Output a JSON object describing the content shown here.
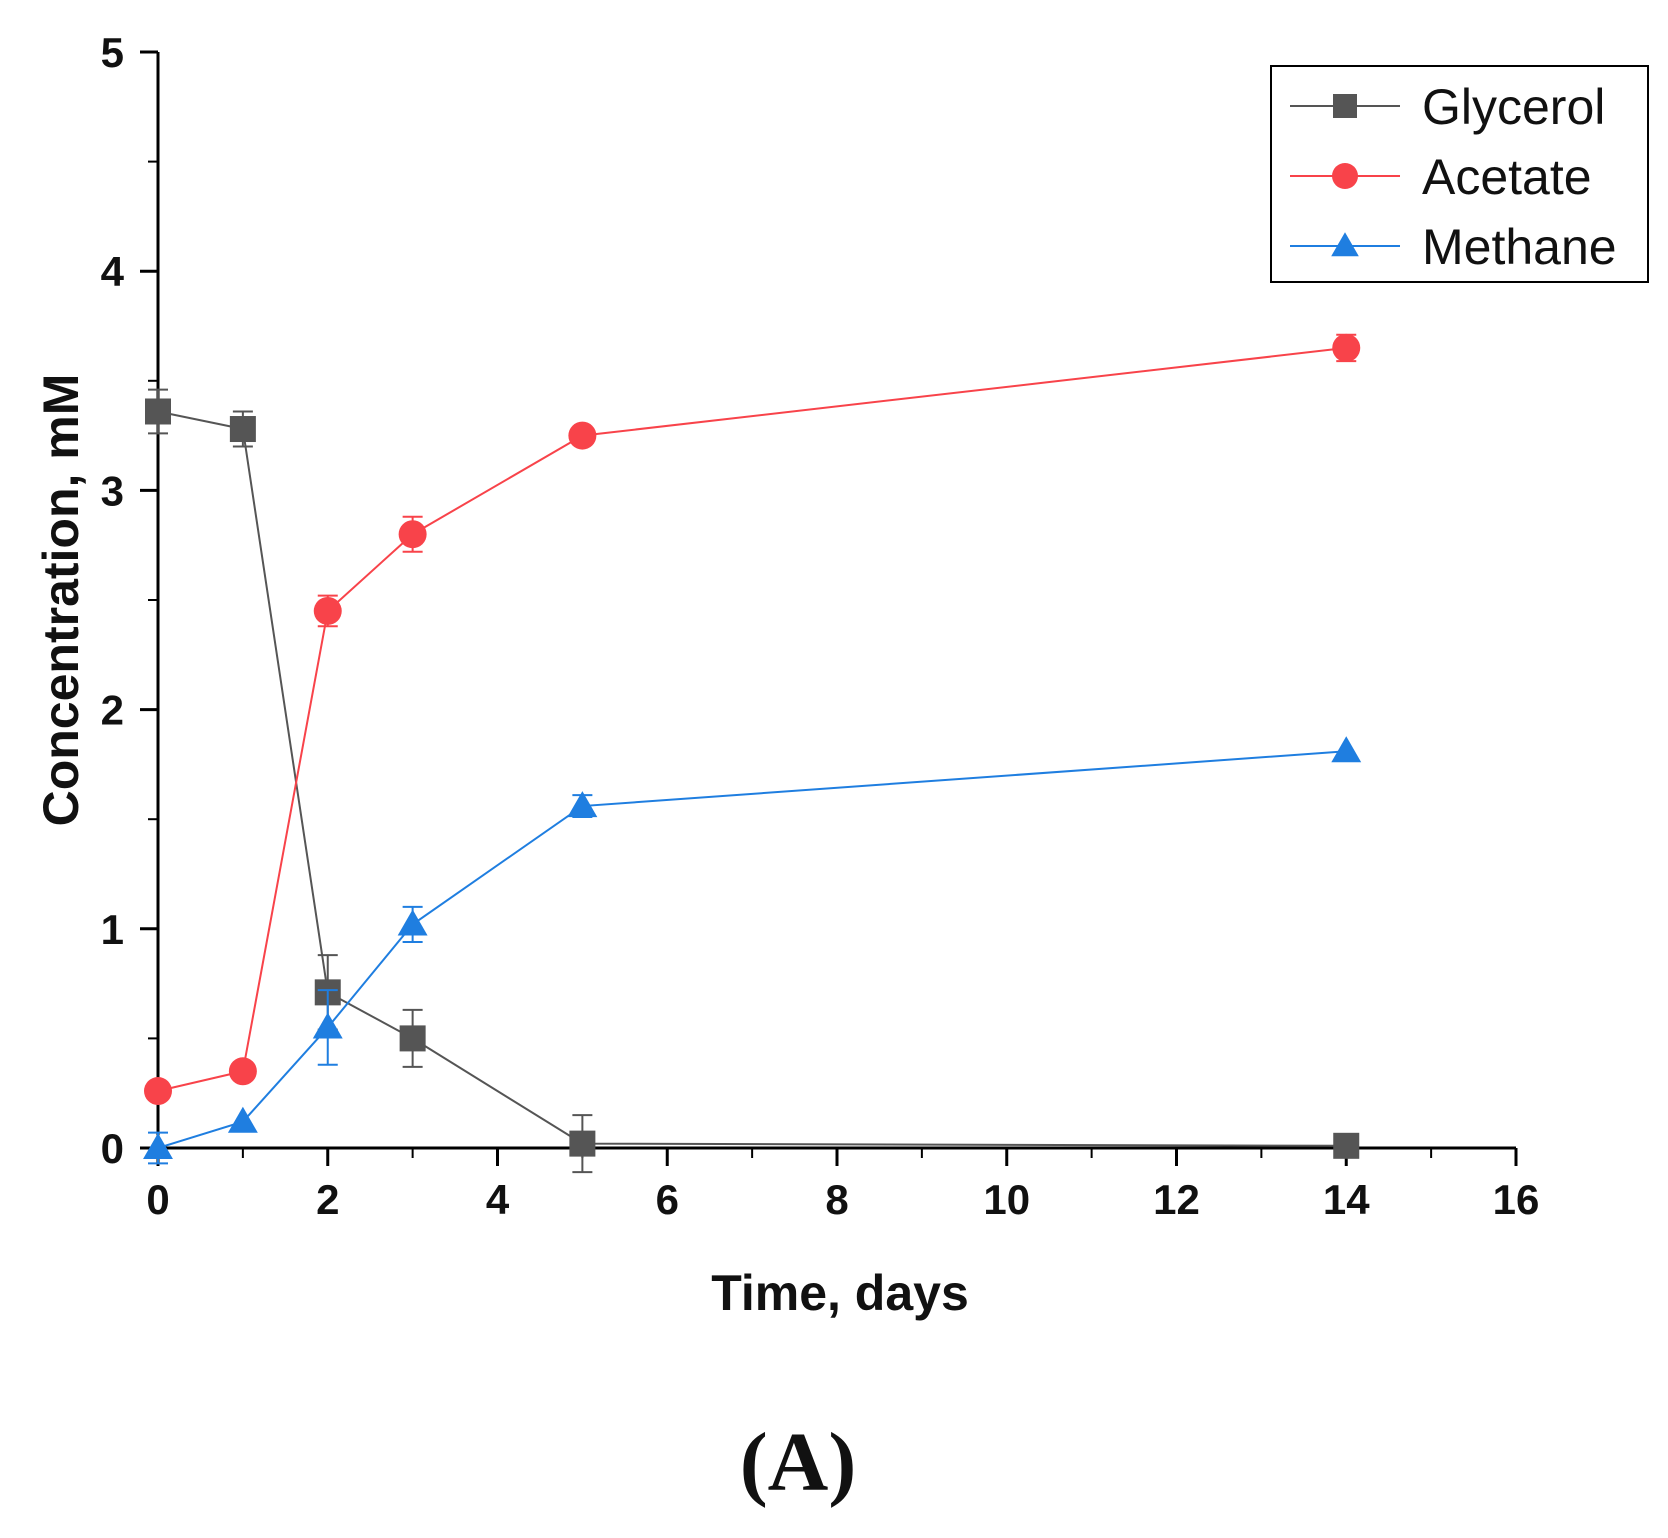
{
  "chart_data": {
    "type": "line",
    "title": "",
    "xlabel": "Time, days",
    "ylabel": "Concentration, mM",
    "xlim": [
      0,
      16
    ],
    "ylim": [
      0,
      5
    ],
    "x_ticks": [
      "0",
      "2",
      "4",
      "6",
      "8",
      "10",
      "12",
      "14",
      "16"
    ],
    "y_ticks": [
      "0",
      "1",
      "2",
      "3",
      "4",
      "5"
    ],
    "legend_position": "top-right",
    "grid": false,
    "panel_label": "(A)",
    "x": [
      0,
      1,
      2,
      3,
      5,
      14
    ],
    "series": [
      {
        "name": "Glycerol",
        "marker": "square",
        "color": "#555555",
        "values": [
          3.36,
          3.28,
          0.71,
          0.5,
          0.02,
          0.01
        ],
        "errors": [
          0.1,
          0.08,
          0.17,
          0.13,
          0.13,
          0.0
        ]
      },
      {
        "name": "Acetate",
        "marker": "circle",
        "color": "#f8434a",
        "values": [
          0.26,
          0.35,
          2.45,
          2.8,
          3.25,
          3.65
        ],
        "errors": [
          0.0,
          0.0,
          0.07,
          0.08,
          0.0,
          0.06
        ]
      },
      {
        "name": "Methane",
        "marker": "triangle",
        "color": "#1f7ee0",
        "values": [
          0.0,
          0.12,
          0.55,
          1.02,
          1.56,
          1.81
        ],
        "errors": [
          0.07,
          0.0,
          0.17,
          0.08,
          0.05,
          0.0
        ]
      }
    ]
  }
}
